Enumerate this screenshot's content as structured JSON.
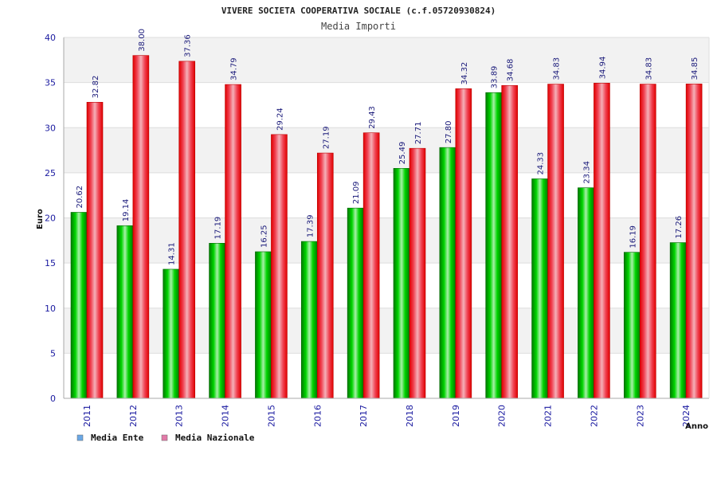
{
  "chart_data": {
    "type": "bar",
    "title": "VIVERE SOCIETA COOPERATIVA SOCIALE (c.f.05720930824)",
    "subtitle": "Media Importi",
    "xlabel": "Anno",
    "ylabel": "Euro",
    "ylim": [
      0,
      40
    ],
    "yticks": [
      0,
      5,
      10,
      15,
      20,
      25,
      30,
      35,
      40
    ],
    "grid": true,
    "legend_position": "bottom-left",
    "categories": [
      "2011",
      "2012",
      "2013",
      "2014",
      "2015",
      "2016",
      "2017",
      "2018",
      "2019",
      "2020",
      "2021",
      "2022",
      "2023",
      "2024"
    ],
    "series": [
      {
        "name": "Media Ente",
        "color": "#00aa00",
        "legend_color": "#6aa8e6",
        "values": [
          20.62,
          19.14,
          14.31,
          17.19,
          16.25,
          17.39,
          21.09,
          25.49,
          27.8,
          33.89,
          24.33,
          23.34,
          16.19,
          17.26
        ],
        "labels": [
          "20.62",
          "19.14",
          "14.31",
          "17.19",
          "16.25",
          "17.39",
          "21.09",
          "25.49",
          "27.80",
          "33.89",
          "24.33",
          "23.34",
          "16.19",
          "17.26"
        ]
      },
      {
        "name": "Media Nazionale",
        "color": "#ee1111",
        "legend_color": "#e27aa8",
        "values": [
          32.82,
          38.0,
          37.36,
          34.79,
          29.24,
          27.19,
          29.43,
          27.71,
          34.32,
          34.68,
          34.83,
          34.94,
          34.83,
          34.85
        ],
        "labels": [
          "32.82",
          "38.00",
          "37.36",
          "34.79",
          "29.24",
          "27.19",
          "29.43",
          "27.71",
          "34.32",
          "34.68",
          "34.83",
          "34.94",
          "34.83",
          "34.85"
        ]
      }
    ]
  }
}
